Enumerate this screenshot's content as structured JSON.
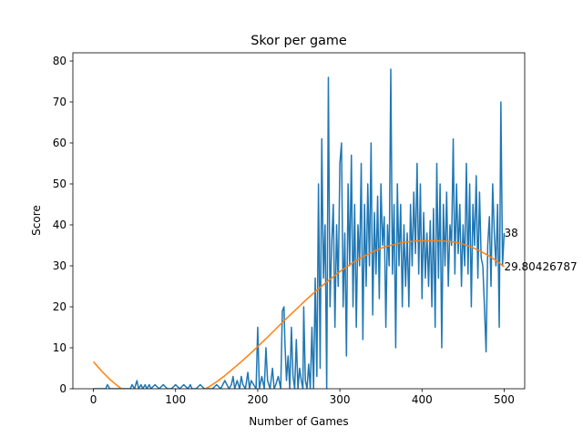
{
  "chart_data": {
    "type": "line",
    "title": "Skor per game",
    "xlabel": "Number of Games",
    "ylabel": "Score",
    "xlim": [
      -25,
      525
    ],
    "ylim": [
      0,
      82
    ],
    "xticks": [
      0,
      100,
      200,
      300,
      400,
      500
    ],
    "yticks": [
      0,
      10,
      20,
      30,
      40,
      50,
      60,
      70,
      80
    ],
    "grid": false,
    "legend": "none",
    "series": [
      {
        "color": "#1f77b4",
        "x": [
          0,
          15,
          17,
          20,
          30,
          45,
          47,
          50,
          53,
          55,
          58,
          60,
          63,
          65,
          68,
          70,
          75,
          80,
          85,
          90,
          95,
          100,
          105,
          110,
          115,
          118,
          120,
          125,
          130,
          135,
          140,
          145,
          150,
          155,
          160,
          165,
          168,
          170,
          172,
          175,
          178,
          180,
          182,
          185,
          188,
          190,
          192,
          195,
          198,
          200,
          202,
          205,
          208,
          210,
          212,
          215,
          218,
          220,
          222,
          225,
          228,
          230,
          232,
          233,
          235,
          237,
          239,
          241,
          243,
          245,
          247,
          249,
          251,
          253,
          255,
          256,
          258,
          260,
          262,
          264,
          266,
          268,
          270,
          272,
          274,
          276,
          278,
          280,
          282,
          284,
          286,
          288,
          290,
          292,
          294,
          296,
          298,
          300,
          302,
          304,
          306,
          308,
          310,
          312,
          314,
          316,
          318,
          320,
          322,
          324,
          326,
          328,
          330,
          332,
          334,
          336,
          338,
          340,
          342,
          344,
          346,
          348,
          350,
          352,
          354,
          356,
          358,
          360,
          362,
          364,
          366,
          368,
          370,
          372,
          374,
          376,
          378,
          380,
          382,
          384,
          386,
          388,
          390,
          392,
          394,
          396,
          398,
          400,
          402,
          404,
          406,
          408,
          410,
          412,
          414,
          416,
          418,
          420,
          422,
          424,
          426,
          428,
          430,
          432,
          434,
          436,
          438,
          440,
          442,
          444,
          446,
          448,
          450,
          452,
          454,
          456,
          458,
          460,
          462,
          464,
          466,
          468,
          470,
          472,
          474,
          476,
          478,
          480,
          482,
          484,
          486,
          488,
          490,
          492,
          494,
          496,
          498,
          500
        ],
        "y": [
          0,
          0,
          1,
          0,
          0,
          0,
          1,
          0,
          2,
          0,
          1,
          0,
          1,
          0,
          1,
          0,
          1,
          0,
          1,
          0,
          0,
          1,
          0,
          1,
          0,
          1,
          0,
          0,
          1,
          0,
          0,
          0,
          1,
          0,
          2,
          0,
          1,
          3,
          0,
          2,
          0,
          3,
          1,
          0,
          4,
          0,
          2,
          1,
          0,
          15,
          0,
          3,
          0,
          10,
          2,
          0,
          5,
          0,
          1,
          3,
          0,
          19,
          20,
          12,
          2,
          8,
          0,
          15,
          3,
          0,
          12,
          0,
          5,
          2,
          0,
          20,
          2,
          0,
          6,
          0,
          15,
          0,
          27,
          3,
          50,
          5,
          61,
          27,
          40,
          0,
          76,
          20,
          35,
          45,
          15,
          40,
          25,
          55,
          60,
          20,
          38,
          8,
          50,
          30,
          57,
          20,
          45,
          15,
          40,
          30,
          55,
          12,
          45,
          25,
          50,
          30,
          60,
          18,
          43,
          28,
          47,
          22,
          50,
          35,
          42,
          15,
          40,
          30,
          78,
          28,
          45,
          10,
          50,
          30,
          45,
          20,
          40,
          25,
          38,
          20,
          45,
          30,
          48,
          33,
          55,
          28,
          50,
          22,
          43,
          27,
          38,
          25,
          41,
          20,
          44,
          15,
          55,
          27,
          50,
          10,
          45,
          30,
          48,
          25,
          40,
          35,
          61,
          28,
          50,
          33,
          45,
          25,
          40,
          30,
          55,
          28,
          50,
          20,
          45,
          35,
          52,
          27,
          48,
          32,
          30,
          20,
          9,
          35,
          42,
          25,
          50,
          38,
          30,
          45,
          15,
          70,
          30,
          38
        ]
      },
      {
        "color": "#ff7f0e",
        "x": [
          0,
          10,
          20,
          30,
          40,
          50,
          60,
          70,
          80,
          90,
          100,
          110,
          120,
          130,
          140,
          150,
          160,
          170,
          180,
          190,
          200,
          210,
          220,
          230,
          240,
          250,
          260,
          270,
          280,
          290,
          300,
          310,
          320,
          330,
          340,
          350,
          360,
          370,
          380,
          390,
          400,
          410,
          420,
          430,
          440,
          450,
          460,
          470,
          480,
          490,
          500
        ],
        "y": [
          6.6,
          4.3,
          2.3,
          0.6,
          -0.8,
          -1.9,
          -2.7,
          -3.2,
          -3.4,
          -3.4,
          -3.1,
          -2.6,
          -1.8,
          -0.8,
          0.4,
          1.7,
          3.2,
          4.9,
          6.6,
          8.4,
          10.3,
          12.2,
          14.2,
          16.2,
          18.1,
          20.0,
          21.9,
          23.7,
          25.4,
          27.0,
          28.6,
          30.0,
          31.3,
          32.4,
          33.4,
          34.3,
          34.9,
          35.4,
          35.8,
          36.0,
          36.1,
          36.1,
          36.1,
          36.0,
          35.8,
          35.3,
          34.6,
          33.7,
          32.6,
          31.3,
          29.8
        ]
      }
    ],
    "annotations": [
      {
        "text": "38",
        "x": 500,
        "y": 38
      },
      {
        "text": "29.80426787",
        "x": 500,
        "y": 29.80426787
      }
    ]
  }
}
